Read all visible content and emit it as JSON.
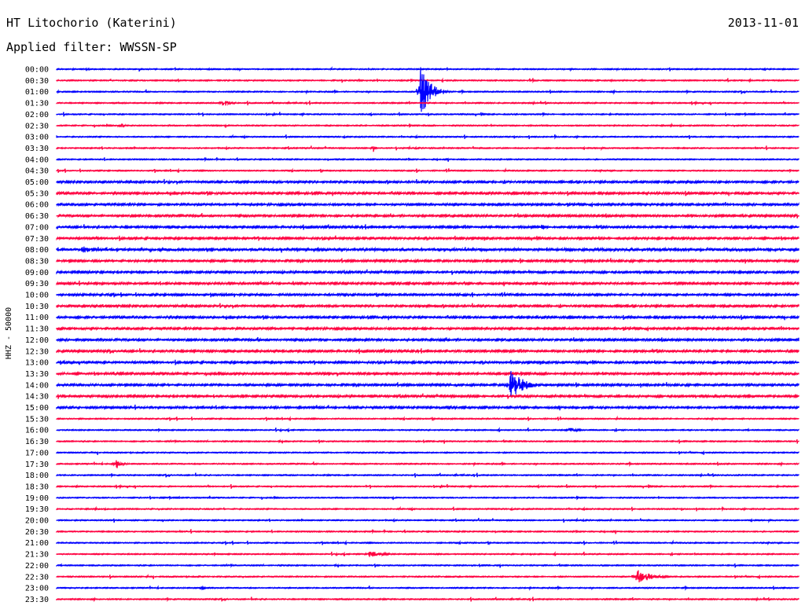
{
  "header": {
    "station": "HT Litochorio (Katerini)",
    "date": "2013-11-01",
    "filter": "Applied filter: WWSSN-SP"
  },
  "chart_data": {
    "type": "line",
    "title": "HT Litochorio (Katerini)",
    "subtitle": "Applied filter: WWSSN-SP",
    "ylabel": "HHZ - 50000",
    "xlabel": "",
    "grid": false,
    "colors": [
      "#0000ff",
      "#ff0040"
    ],
    "row_labels": [
      "00:00",
      "00:30",
      "01:00",
      "01:30",
      "02:00",
      "02:30",
      "03:00",
      "03:30",
      "04:00",
      "04:30",
      "05:00",
      "05:30",
      "06:00",
      "06:30",
      "07:00",
      "07:30",
      "08:00",
      "08:30",
      "09:00",
      "09:30",
      "10:00",
      "10:30",
      "11:00",
      "11:30",
      "12:00",
      "12:30",
      "13:00",
      "13:30",
      "14:00",
      "14:30",
      "15:00",
      "15:30",
      "16:00",
      "16:30",
      "17:00",
      "17:30",
      "18:00",
      "18:30",
      "19:00",
      "19:30",
      "20:00",
      "20:30",
      "21:00",
      "21:30",
      "22:00",
      "22:30",
      "23:00",
      "23:30"
    ],
    "noise_level": [
      1,
      1,
      1,
      1,
      1,
      1,
      1,
      1,
      1,
      1,
      2,
      2,
      2,
      2,
      2,
      2,
      3,
      2,
      2,
      2,
      2,
      2,
      2,
      2,
      2,
      2,
      2,
      2,
      2,
      2,
      2,
      1,
      1,
      1,
      1,
      1,
      1,
      1,
      1,
      1,
      1,
      1,
      1,
      1,
      1,
      1,
      1,
      1
    ],
    "events": [
      {
        "row": 2,
        "minute": 14.7,
        "amplitude": 35,
        "duration_min": 1.2
      },
      {
        "row": 3,
        "minute": 6.7,
        "amplitude": 5,
        "duration_min": 0.9
      },
      {
        "row": 5,
        "minute": 2.6,
        "amplitude": 5,
        "duration_min": 0.3
      },
      {
        "row": 7,
        "minute": 12.8,
        "amplitude": 6,
        "duration_min": 0.3
      },
      {
        "row": 11,
        "minute": 9.7,
        "amplitude": 4,
        "duration_min": 0.4
      },
      {
        "row": 14,
        "minute": 19.6,
        "amplitude": 5,
        "duration_min": 0.4
      },
      {
        "row": 16,
        "minute": 1.0,
        "amplitude": 5,
        "duration_min": 1.5
      },
      {
        "row": 21,
        "minute": 22.8,
        "amplitude": 5,
        "duration_min": 0.3
      },
      {
        "row": 28,
        "minute": 18.3,
        "amplitude": 22,
        "duration_min": 1.6
      },
      {
        "row": 32,
        "minute": 20.7,
        "amplitude": 4,
        "duration_min": 1.0
      },
      {
        "row": 35,
        "minute": 2.4,
        "amplitude": 7,
        "duration_min": 0.6
      },
      {
        "row": 43,
        "minute": 12.6,
        "amplitude": 5,
        "duration_min": 1.5
      },
      {
        "row": 45,
        "minute": 23.4,
        "amplitude": 13,
        "duration_min": 1.5
      },
      {
        "row": 46,
        "minute": 5.8,
        "amplitude": 3,
        "duration_min": 0.7
      }
    ]
  }
}
